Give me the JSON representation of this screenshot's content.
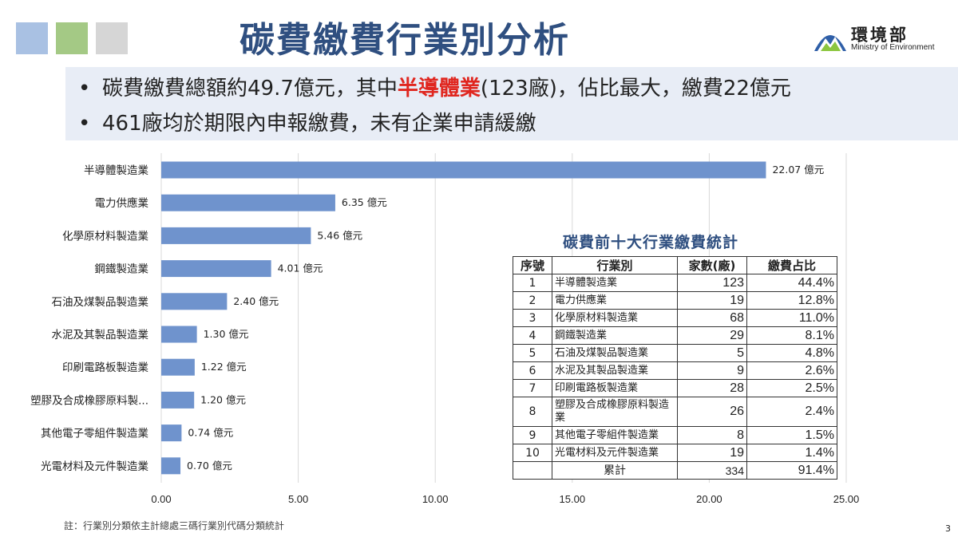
{
  "title": "碳費繳費行業別分析",
  "logo": {
    "cn": "環境部",
    "en": "Ministry of Environment"
  },
  "bullets": [
    {
      "pre": "碳費繳費總額約49.7億元，其中",
      "highlight": "半導體業",
      "post": "(123廠)，佔比最大，繳費22億元"
    },
    {
      "pre": "461廠均於期限內申報繳費，未有企業申請緩繳",
      "highlight": "",
      "post": ""
    }
  ],
  "colors": {
    "bar": "#6f93cd",
    "title": "#2f4f80",
    "highlight": "#e0261f",
    "grid": "#d9d9d9"
  },
  "chart_data": {
    "type": "bar",
    "orientation": "horizontal",
    "categories": [
      "半導體製造業",
      "電力供應業",
      "化學原材料製造業",
      "鋼鐵製造業",
      "石油及煤製品製造業",
      "水泥及其製品製造業",
      "印刷電路板製造業",
      "塑膠及合成橡膠原料製...",
      "其他電子零組件製造業",
      "光電材料及元件製造業"
    ],
    "values": [
      22.07,
      6.35,
      5.46,
      4.01,
      2.4,
      1.3,
      1.22,
      1.2,
      0.74,
      0.7
    ],
    "value_labels": [
      "22.07 億元",
      "6.35 億元",
      "5.46 億元",
      "4.01 億元",
      "2.40 億元",
      "1.30 億元",
      "1.22 億元",
      "1.20 億元",
      "0.74 億元",
      "0.70 億元"
    ],
    "x_ticks": [
      "0.00",
      "5.00",
      "10.00",
      "15.00",
      "20.00",
      "25.00"
    ],
    "xlim": [
      0,
      25
    ],
    "grid": true
  },
  "table": {
    "title": "碳費前十大行業繳費統計",
    "headers": [
      "序號",
      "行業別",
      "家數(廠)",
      "繳費占比"
    ],
    "rows": [
      [
        "1",
        "半導體製造業",
        "123",
        "44.4%"
      ],
      [
        "2",
        "電力供應業",
        "19",
        "12.8%"
      ],
      [
        "3",
        "化學原材料製造業",
        "68",
        "11.0%"
      ],
      [
        "4",
        "鋼鐵製造業",
        "29",
        "8.1%"
      ],
      [
        "5",
        "石油及煤製品製造業",
        "5",
        "4.8%"
      ],
      [
        "6",
        "水泥及其製品製造業",
        "9",
        "2.6%"
      ],
      [
        "7",
        "印刷電路板製造業",
        "28",
        "2.5%"
      ],
      [
        "8",
        "塑膠及合成橡膠原料製造業",
        "26",
        "2.4%"
      ],
      [
        "9",
        "其他電子零組件製造業",
        "8",
        "1.5%"
      ],
      [
        "10",
        "光電材料及元件製造業",
        "19",
        "1.4%"
      ]
    ],
    "total": [
      "",
      "累計",
      "334",
      "91.4%"
    ]
  },
  "note": "註：行業別分類依主計總處三碼行業別代碼分類統計",
  "page_number": "3"
}
